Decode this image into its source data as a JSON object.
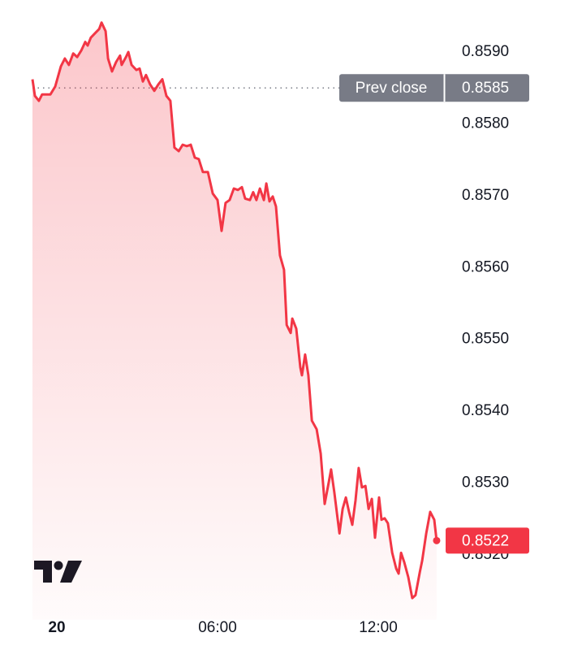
{
  "chart_data": {
    "type": "line",
    "x": [
      -0.91,
      -0.82,
      -0.67,
      -0.55,
      -0.24,
      -0.06,
      0.15,
      0.3,
      0.45,
      0.61,
      0.76,
      0.91,
      1.06,
      1.15,
      1.27,
      1.45,
      1.58,
      1.67,
      1.82,
      1.91,
      2.06,
      2.21,
      2.36,
      2.42,
      2.58,
      2.67,
      2.79,
      2.97,
      3.09,
      3.21,
      3.33,
      3.48,
      3.64,
      3.79,
      3.94,
      4.09,
      4.24,
      4.39,
      4.55,
      4.7,
      4.85,
      5.0,
      5.15,
      5.3,
      5.45,
      5.64,
      5.82,
      6.0,
      6.15,
      6.3,
      6.45,
      6.61,
      6.76,
      6.91,
      7.03,
      7.21,
      7.33,
      7.45,
      7.58,
      7.73,
      7.82,
      7.94,
      8.06,
      8.18,
      8.33,
      8.48,
      8.58,
      8.73,
      8.79,
      8.94,
      9.09,
      9.15,
      9.27,
      9.39,
      9.52,
      9.7,
      9.85,
      10.0,
      10.15,
      10.24,
      10.36,
      10.55,
      10.67,
      10.79,
      10.91,
      11.03,
      11.15,
      11.27,
      11.39,
      11.52,
      11.64,
      11.76,
      11.88,
      12.03,
      12.12,
      12.24,
      12.36,
      12.52,
      12.67,
      12.76,
      12.85,
      12.97,
      13.12,
      13.27,
      13.39,
      13.55,
      13.64,
      13.79,
      13.94,
      14.09,
      14.18
    ],
    "series": [
      {
        "color": "#f23645",
        "values": [
          0.85862,
          0.85839,
          0.85832,
          0.85841,
          0.85841,
          0.85852,
          0.8588,
          0.85891,
          0.85882,
          0.85898,
          0.85893,
          0.85902,
          0.85914,
          0.85909,
          0.8592,
          0.85927,
          0.85932,
          0.85941,
          0.85929,
          0.85891,
          0.85873,
          0.85886,
          0.85895,
          0.85882,
          0.85893,
          0.859,
          0.85882,
          0.85875,
          0.85877,
          0.85859,
          0.85868,
          0.85855,
          0.85846,
          0.85855,
          0.85862,
          0.85839,
          0.85832,
          0.85767,
          0.85762,
          0.85771,
          0.85769,
          0.85771,
          0.85753,
          0.85751,
          0.85733,
          0.85733,
          0.85703,
          0.85694,
          0.85651,
          0.8569,
          0.85694,
          0.8571,
          0.85708,
          0.85712,
          0.85696,
          0.85694,
          0.85705,
          0.85694,
          0.8571,
          0.85694,
          0.85717,
          0.85692,
          0.85699,
          0.85685,
          0.85617,
          0.85597,
          0.8552,
          0.85509,
          0.85529,
          0.85515,
          0.85461,
          0.8545,
          0.85479,
          0.8545,
          0.85387,
          0.85375,
          0.85341,
          0.85271,
          0.85301,
          0.85319,
          0.85287,
          0.8523,
          0.85264,
          0.8528,
          0.8526,
          0.85242,
          0.85276,
          0.85321,
          0.85294,
          0.85296,
          0.85264,
          0.85278,
          0.85224,
          0.8528,
          0.85249,
          0.85251,
          0.85244,
          0.85203,
          0.85181,
          0.85174,
          0.85203,
          0.8519,
          0.85169,
          0.8514,
          0.85144,
          0.85176,
          0.85192,
          0.8523,
          0.8526,
          0.85249,
          0.8522
        ]
      }
    ],
    "prev_close": {
      "label": "Prev close",
      "value": 0.8585,
      "color": "#787b86"
    },
    "xlim": [
      -0.91,
      14.6
    ],
    "xticks": [
      {
        "value": 0,
        "label": "20"
      },
      {
        "value": 6,
        "label": "06:00"
      },
      {
        "value": 12,
        "label": "12:00"
      }
    ],
    "ylim": [
      0.8511,
      0.8595
    ],
    "yticks": [
      {
        "value": 0.859,
        "label": "0.8590"
      },
      {
        "value": 0.858,
        "label": "0.8580"
      },
      {
        "value": 0.857,
        "label": "0.8570"
      },
      {
        "value": 0.856,
        "label": "0.8560"
      },
      {
        "value": 0.855,
        "label": "0.8550"
      },
      {
        "value": 0.854,
        "label": "0.8540"
      },
      {
        "value": 0.853,
        "label": "0.8530"
      },
      {
        "value": 0.852,
        "label": "0.8520"
      }
    ],
    "grid": false
  }
}
